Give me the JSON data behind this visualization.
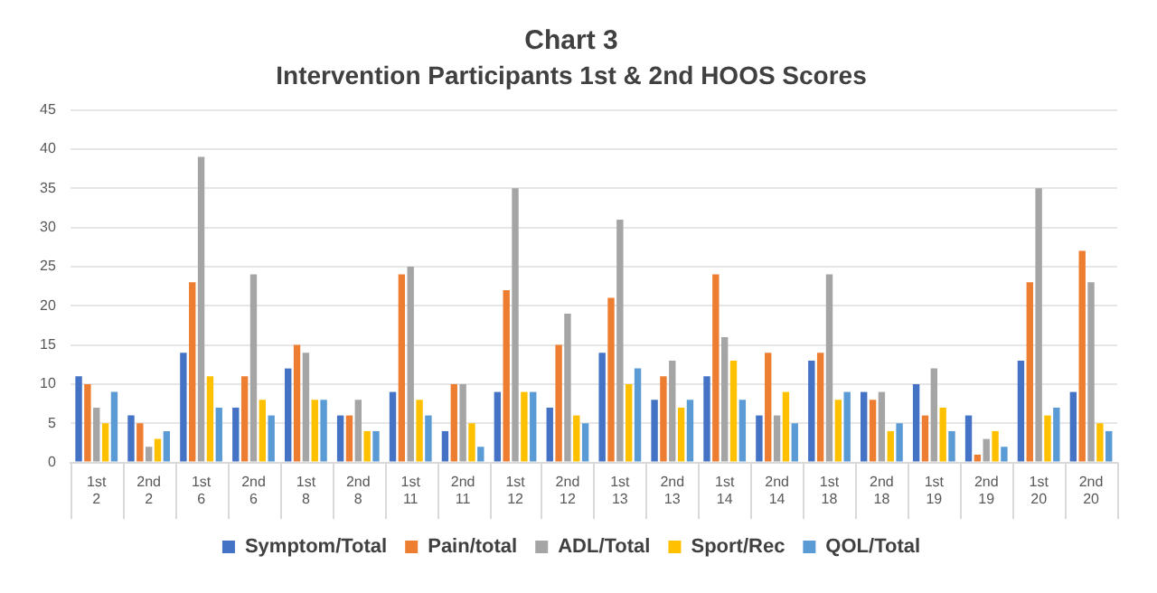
{
  "chart_data": {
    "type": "bar",
    "title": "Chart 3",
    "subtitle": "Intervention Participants 1st & 2nd HOOS Scores",
    "categories": [
      "1st\n2",
      "2nd\n2",
      "1st\n6",
      "2nd\n6",
      "1st\n8",
      "2nd\n8",
      "1st\n11",
      "2nd\n11",
      "1st\n12",
      "2nd\n12",
      "1st\n13",
      "2nd\n13",
      "1st\n14",
      "2nd\n14",
      "1st\n18",
      "2nd\n18",
      "1st\n19",
      "2nd\n19",
      "1st\n20",
      "2nd\n20"
    ],
    "series": [
      {
        "name": "Symptom/Total",
        "color": "#4472c4",
        "values": [
          11,
          6,
          14,
          7,
          12,
          6,
          9,
          4,
          9,
          7,
          14,
          8,
          11,
          6,
          13,
          9,
          10,
          6,
          13,
          9
        ]
      },
      {
        "name": "Pain/total",
        "color": "#ed7d31",
        "values": [
          10,
          5,
          23,
          11,
          15,
          6,
          24,
          10,
          22,
          15,
          21,
          11,
          24,
          14,
          14,
          8,
          6,
          1,
          23,
          27
        ]
      },
      {
        "name": "ADL/Total",
        "color": "#a5a5a5",
        "values": [
          7,
          2,
          39,
          24,
          14,
          8,
          25,
          10,
          35,
          19,
          31,
          13,
          16,
          6,
          24,
          9,
          12,
          3,
          35,
          23
        ]
      },
      {
        "name": "Sport/Rec",
        "color": "#ffc000",
        "values": [
          5,
          3,
          11,
          8,
          8,
          4,
          8,
          5,
          9,
          6,
          10,
          7,
          13,
          9,
          8,
          4,
          7,
          4,
          6,
          5
        ]
      },
      {
        "name": "QOL/Total",
        "color": "#5b9bd5",
        "values": [
          9,
          4,
          7,
          6,
          8,
          4,
          6,
          2,
          9,
          5,
          12,
          8,
          8,
          5,
          9,
          5,
          4,
          2,
          7,
          4
        ]
      }
    ],
    "ylim": [
      0,
      45
    ],
    "yticks": [
      0,
      5,
      10,
      15,
      20,
      25,
      30,
      35,
      40,
      45
    ],
    "grid": "y",
    "legend": "bottom"
  }
}
